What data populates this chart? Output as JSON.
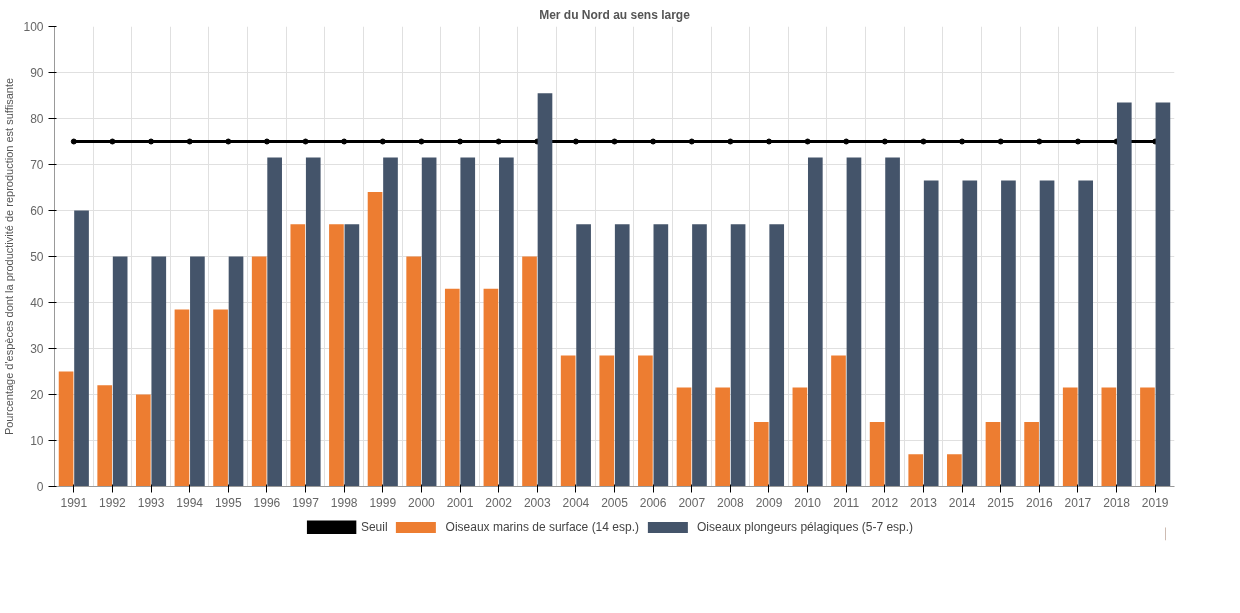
{
  "chart_data": {
    "type": "bar",
    "title": "Mer du Nord au sens large",
    "ylabel": "Pourcentage d'espèces dont la productivité de reproduction est suffisante",
    "categories": [
      "1991",
      "1992",
      "1993",
      "1994",
      "1995",
      "1996",
      "1997",
      "1998",
      "1999",
      "2000",
      "2001",
      "2002",
      "2003",
      "2004",
      "2005",
      "2006",
      "2007",
      "2008",
      "2009",
      "2010",
      "2011",
      "2012",
      "2013",
      "2014",
      "2015",
      "2016",
      "2017",
      "2018",
      "2019"
    ],
    "series": [
      {
        "name": "Seuil",
        "type": "line",
        "color": "#000000",
        "marker": "circle",
        "values": [
          75,
          75,
          75,
          75,
          75,
          75,
          75,
          75,
          75,
          75,
          75,
          75,
          75,
          75,
          75,
          75,
          75,
          75,
          75,
          75,
          75,
          75,
          75,
          75,
          75,
          75,
          75,
          75,
          75
        ]
      },
      {
        "name": "Oiseaux marins de surface (14 esp.)",
        "color": "#ed7d31",
        "values": [
          25,
          22,
          20,
          38.5,
          38.5,
          50,
          57,
          57,
          64,
          50,
          43,
          43,
          50,
          28.5,
          28.5,
          28.5,
          21.5,
          21.5,
          14,
          21.5,
          28.5,
          14,
          7,
          7,
          14,
          14,
          21.5,
          21.5,
          21.5
        ]
      },
      {
        "name": "Oiseaux plongeurs pélagiques (5-7 esp.)",
        "color": "#44546a",
        "values": [
          60,
          50,
          50,
          50,
          50,
          71.5,
          71.5,
          57,
          71.5,
          71.5,
          71.5,
          71.5,
          85.5,
          57,
          57,
          57,
          57,
          57,
          57,
          71.5,
          71.5,
          71.5,
          66.5,
          66.5,
          66.5,
          66.5,
          66.5,
          83.5,
          83.5
        ]
      }
    ],
    "ylim": [
      0,
      100
    ],
    "yticks": [
      0,
      10,
      20,
      30,
      40,
      50,
      60,
      70,
      80,
      90,
      100
    ],
    "grid": true,
    "legend": "bottom"
  }
}
